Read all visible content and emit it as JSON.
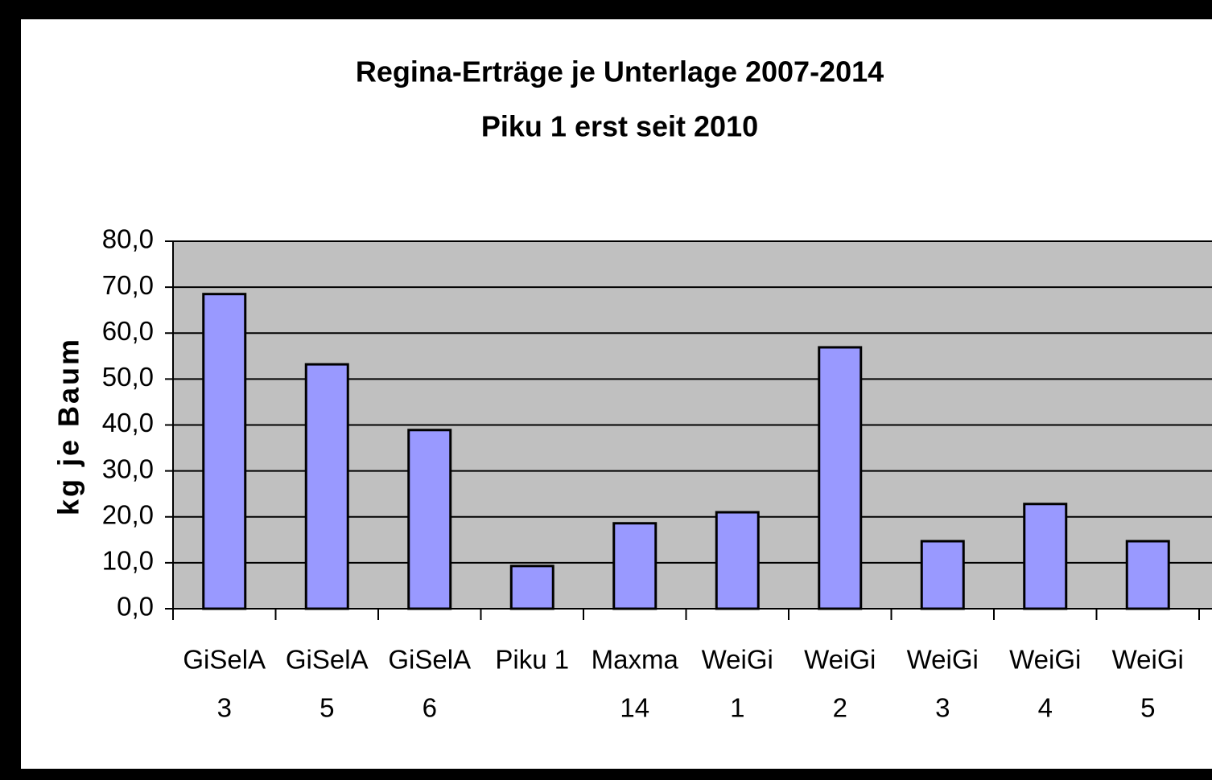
{
  "chart_data": {
    "type": "bar",
    "title": [
      "Regina-Erträge je Unterlage 2007-2014",
      "Piku 1 erst seit 2010"
    ],
    "ylabel": "kg je Baum",
    "categories": [
      [
        "GiSelA",
        "3"
      ],
      [
        "GiSelA",
        "5"
      ],
      [
        "GiSelA",
        "6"
      ],
      [
        "Piku 1"
      ],
      [
        "Maxma",
        "14"
      ],
      [
        "WeiGi",
        "1"
      ],
      [
        "WeiGi",
        "2"
      ],
      [
        "WeiGi",
        "3"
      ],
      [
        "WeiGi",
        "4"
      ],
      [
        "WeiGi",
        "5"
      ]
    ],
    "values": [
      68.5,
      53.2,
      38.9,
      9.3,
      18.6,
      21.0,
      56.9,
      14.7,
      22.8,
      14.7
    ],
    "color": "#9999ff",
    "ylim": [
      0,
      80
    ],
    "yticks": [
      {
        "value": 0,
        "label": "0,0"
      },
      {
        "value": 10,
        "label": "10,0"
      },
      {
        "value": 20,
        "label": "20,0"
      },
      {
        "value": 30,
        "label": "30,0"
      },
      {
        "value": 40,
        "label": "40,0"
      },
      {
        "value": 50,
        "label": "50,0"
      },
      {
        "value": 60,
        "label": "60,0"
      },
      {
        "value": 70,
        "label": "70,0"
      },
      {
        "value": 80,
        "label": "80,0"
      }
    ],
    "grid": true,
    "plot_background": "#c0c0c0"
  }
}
